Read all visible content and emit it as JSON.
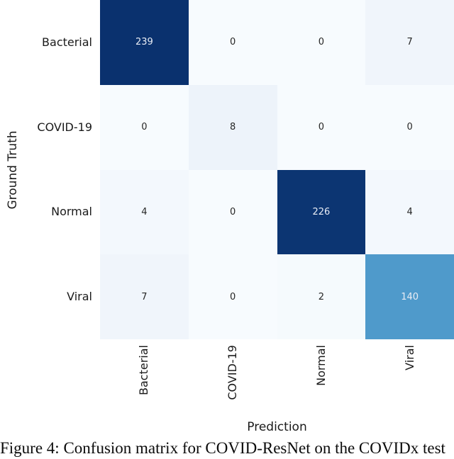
{
  "chart_data": {
    "type": "heatmap",
    "title": "",
    "xlabel": "Prediction",
    "ylabel": "Ground Truth",
    "categories": [
      "Bacterial",
      "COVID-19",
      "Normal",
      "Viral"
    ],
    "row_labels": [
      "Bacterial",
      "COVID-19",
      "Normal",
      "Viral"
    ],
    "col_labels": [
      "Bacterial",
      "COVID-19",
      "Normal",
      "Viral"
    ],
    "matrix": [
      [
        239,
        0,
        0,
        7
      ],
      [
        0,
        8,
        0,
        0
      ],
      [
        4,
        0,
        226,
        4
      ],
      [
        7,
        0,
        2,
        140
      ]
    ],
    "value_range": [
      0,
      239
    ],
    "colormap": "Blues",
    "grid": false,
    "legend": "none",
    "cell_colors": [
      [
        "#0a316e",
        "#f7fbfe",
        "#f7fbfe",
        "#f0f5fb"
      ],
      [
        "#f7fbfe",
        "#edf3fa",
        "#f7fbfe",
        "#f7fbfe"
      ],
      [
        "#f3f8fd",
        "#f7fbfe",
        "#0c3572",
        "#f3f8fd"
      ],
      [
        "#f0f5fb",
        "#f7fbfe",
        "#f5fafd",
        "#4f9acb"
      ]
    ],
    "annotation_color_on_dark": "#e9edf5",
    "annotation_color_on_light": "#262626"
  },
  "caption": {
    "text": "Figure 4: Confusion matrix for COVID-ResNet on the COVIDx test"
  }
}
